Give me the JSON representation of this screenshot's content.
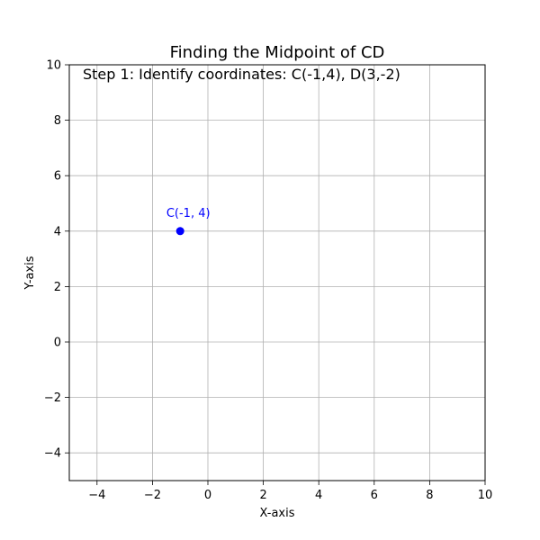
{
  "chart_data": {
    "type": "scatter",
    "title": "Finding the Midpoint of CD",
    "xlabel": "X-axis",
    "ylabel": "Y-axis",
    "xlim": [
      -5,
      10
    ],
    "ylim": [
      -5,
      10
    ],
    "xticks": [
      -4,
      -2,
      0,
      2,
      4,
      6,
      8,
      10
    ],
    "yticks": [
      -4,
      -2,
      0,
      2,
      4,
      6,
      8,
      10
    ],
    "xtick_labels": [
      "−4",
      "−2",
      "0",
      "2",
      "4",
      "6",
      "8",
      "10"
    ],
    "ytick_labels": [
      "−4",
      "−2",
      "0",
      "2",
      "4",
      "6",
      "8",
      "10"
    ],
    "grid": true,
    "annotation": "Step 1: Identify coordinates: C(-1,4), D(3,-2)",
    "points": [
      {
        "x": -1,
        "y": 4,
        "label": "C(-1, 4)",
        "color": "#0000ff"
      }
    ]
  }
}
